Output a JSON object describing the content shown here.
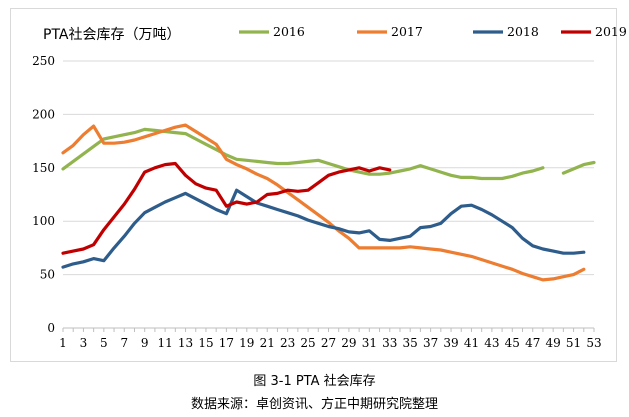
{
  "chart_data": {
    "type": "line",
    "title": "PTA社会库存（万吨）",
    "xlabel": "",
    "ylabel": "",
    "ylim": [
      0,
      250
    ],
    "yticks": [
      0,
      50,
      100,
      150,
      200,
      250
    ],
    "xlim": [
      1,
      53
    ],
    "xticks": [
      1,
      3,
      5,
      7,
      9,
      11,
      13,
      15,
      17,
      19,
      21,
      23,
      25,
      27,
      29,
      31,
      33,
      35,
      37,
      39,
      41,
      43,
      45,
      47,
      49,
      51,
      53
    ],
    "grid": "horizontal",
    "legend": "top",
    "series": [
      {
        "name": "2016",
        "color": "#92b44f",
        "x": [
          1,
          2,
          3,
          4,
          5,
          6,
          7,
          8,
          9,
          10,
          11,
          12,
          13,
          14,
          15,
          16,
          17,
          18,
          19,
          20,
          21,
          22,
          23,
          24,
          25,
          26,
          27,
          28,
          29,
          30,
          31,
          32,
          33,
          34,
          35,
          36,
          37,
          38,
          39,
          40,
          41,
          42,
          43,
          44,
          45,
          46,
          47,
          48,
          49,
          50,
          51,
          52,
          53
        ],
        "values": [
          149,
          156,
          163,
          170,
          177,
          179,
          181,
          183,
          186,
          185,
          184,
          183,
          182,
          177,
          172,
          167,
          162,
          158,
          157,
          156,
          155,
          154,
          154,
          155,
          156,
          157,
          154,
          151,
          148,
          146,
          144,
          144,
          145,
          147,
          149,
          152,
          149,
          146,
          143,
          141,
          141,
          140,
          140,
          140,
          142,
          145,
          147,
          150,
          null,
          145,
          149,
          153,
          155
        ]
      },
      {
        "name": "2017",
        "color": "#ed7d31",
        "x": [
          1,
          2,
          3,
          4,
          5,
          6,
          7,
          8,
          9,
          10,
          11,
          12,
          13,
          14,
          15,
          16,
          17,
          18,
          19,
          20,
          21,
          22,
          23,
          24,
          25,
          26,
          27,
          28,
          29,
          30,
          31,
          32,
          33,
          34,
          35,
          36,
          37,
          38,
          39,
          40,
          41,
          42,
          43,
          44,
          45,
          46,
          47,
          48,
          49,
          50,
          51,
          52
        ],
        "values": [
          164,
          171,
          181,
          189,
          173,
          173,
          174,
          176,
          179,
          182,
          185,
          188,
          190,
          184,
          178,
          172,
          158,
          153,
          149,
          144,
          140,
          134,
          127,
          120,
          113,
          106,
          99,
          91,
          84,
          75,
          75,
          75,
          75,
          75,
          76,
          75,
          74,
          73,
          71,
          69,
          67,
          64,
          61,
          58,
          55,
          51,
          48,
          45,
          46,
          48,
          50,
          55
        ]
      },
      {
        "name": "2018",
        "color": "#2e5d8c",
        "x": [
          1,
          2,
          3,
          4,
          5,
          6,
          7,
          8,
          9,
          10,
          11,
          12,
          13,
          14,
          15,
          16,
          17,
          18,
          19,
          20,
          21,
          22,
          23,
          24,
          25,
          26,
          27,
          28,
          29,
          30,
          31,
          32,
          33,
          34,
          35,
          36,
          37,
          38,
          39,
          40,
          41,
          42,
          43,
          44,
          45,
          46,
          47,
          48,
          49,
          50,
          51,
          52
        ],
        "values": [
          57,
          60,
          62,
          65,
          63,
          75,
          86,
          98,
          108,
          113,
          118,
          122,
          126,
          121,
          116,
          111,
          107,
          129,
          123,
          117,
          114,
          111,
          108,
          105,
          101,
          98,
          95,
          93,
          90,
          89,
          91,
          83,
          82,
          84,
          86,
          94,
          95,
          98,
          107,
          114,
          115,
          111,
          106,
          100,
          94,
          84,
          77,
          74,
          72,
          70,
          70,
          71
        ]
      },
      {
        "name": "2019",
        "color": "#c00000",
        "x": [
          1,
          2,
          3,
          4,
          5,
          6,
          7,
          8,
          9,
          10,
          11,
          12,
          13,
          14,
          15,
          16,
          17,
          18,
          19,
          20,
          21,
          22,
          23,
          24,
          25,
          26,
          27,
          28,
          29,
          30,
          31,
          32,
          33
        ],
        "values": [
          70,
          72,
          74,
          78,
          92,
          104,
          116,
          130,
          146,
          150,
          153,
          154,
          143,
          135,
          131,
          129,
          114,
          118,
          116,
          118,
          125,
          126,
          129,
          128,
          129,
          136,
          143,
          146,
          148,
          150,
          147,
          150,
          148
        ]
      }
    ]
  },
  "caption": "图 3-1 PTA 社会库存",
  "source": "数据来源：卓创资讯、方正中期研究院整理"
}
